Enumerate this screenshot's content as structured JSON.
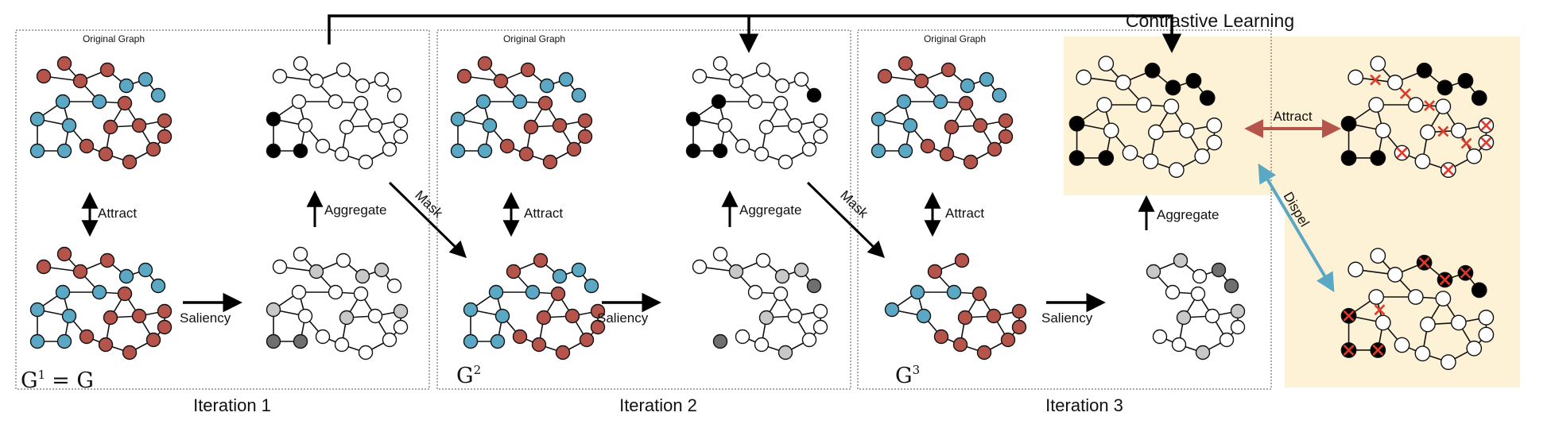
{
  "title": "Contrastive Learning",
  "colors": {
    "red": "#b5544a",
    "blue": "#5ba8c4",
    "gray": "#c8c8c8",
    "darkgray": "#6f6f6f",
    "black": "#000000",
    "white": "#ffffff",
    "cream": "#fdf1d6",
    "attract_arrow": "#b5544a",
    "dispel_arrow": "#5ba8c4",
    "cross": "#e03a2a"
  },
  "iterations": [
    {
      "label": "Iteration 1",
      "graph_title": "Original Graph",
      "graph_symbol": "G",
      "graph_sup": "1",
      "graph_suffix": "= G"
    },
    {
      "label": "Iteration 2",
      "graph_title": "Original Graph",
      "graph_symbol": "G",
      "graph_sup": "2",
      "graph_suffix": ""
    },
    {
      "label": "Iteration 3",
      "graph_title": "Original Graph",
      "graph_symbol": "G",
      "graph_sup": "3",
      "graph_suffix": ""
    }
  ],
  "labels": {
    "attract": "Attract",
    "aggregate": "Aggregate",
    "saliency": "Saliency",
    "mask": "Mask",
    "dispel": "Dispel"
  }
}
